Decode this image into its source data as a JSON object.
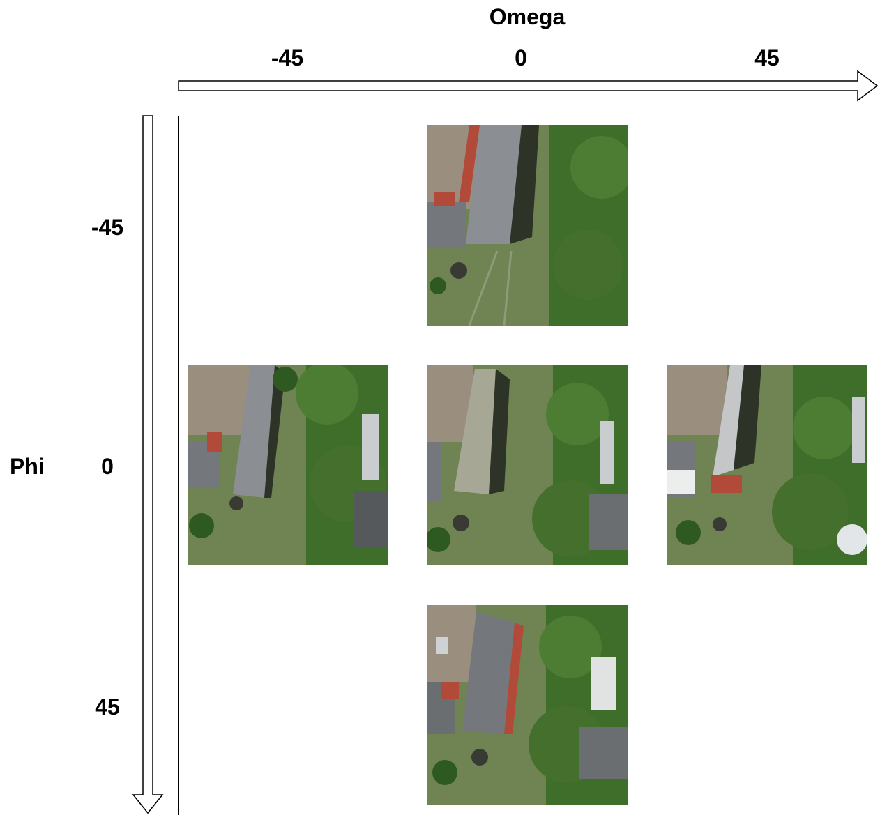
{
  "omega_axis": {
    "title": "Omega",
    "ticks": [
      "-45",
      "0",
      "45"
    ]
  },
  "phi_axis": {
    "title": "Phi",
    "ticks": [
      "-45",
      "0",
      "45"
    ]
  },
  "grid": {
    "cells": [
      {
        "phi": "-45",
        "omega": "0",
        "content": "aerial-image"
      },
      {
        "phi": "0",
        "omega": "-45",
        "content": "aerial-image"
      },
      {
        "phi": "0",
        "omega": "0",
        "content": "aerial-image"
      },
      {
        "phi": "0",
        "omega": "45",
        "content": "aerial-image"
      },
      {
        "phi": "45",
        "omega": "0",
        "content": "aerial-image"
      }
    ]
  },
  "colors": {
    "grass": "#6f8452",
    "tree": "#3f6e2a",
    "ground": "#9a8f7e",
    "roof": "#8b8e92",
    "brick": "#b24a3a",
    "shadow": "#2e3328"
  }
}
